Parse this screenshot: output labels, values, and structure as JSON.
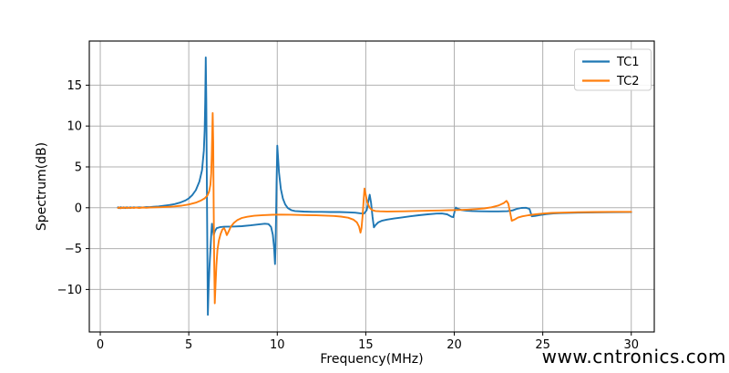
{
  "watermark": {
    "text": "www.cntronics.com",
    "color": "#b4e6b4"
  },
  "chart_data": {
    "type": "line",
    "title": "",
    "xlabel": "Frequency(MHz)",
    "ylabel": "Spectrum(dB)",
    "xlim": [
      -0.62,
      31.3
    ],
    "ylim": [
      -15.2,
      20.4
    ],
    "x_ticks": [
      0,
      5,
      10,
      15,
      20,
      25,
      30
    ],
    "y_ticks": [
      -10,
      -5,
      0,
      5,
      10,
      15
    ],
    "grid": true,
    "grid_color": "#b0b0b0",
    "axis_color": "#000000",
    "legend": {
      "position": "upper right",
      "entries": [
        "TC1",
        "TC2"
      ]
    },
    "series": [
      {
        "name": "TC1",
        "color": "#1f77b4",
        "points": [
          [
            1.0,
            0.05
          ],
          [
            1.08,
            -0.06
          ],
          [
            1.16,
            0.07
          ],
          [
            1.24,
            -0.03
          ],
          [
            1.32,
            0.06
          ],
          [
            1.4,
            -0.04
          ],
          [
            1.5,
            0.05
          ],
          [
            1.6,
            -0.02
          ],
          [
            1.7,
            0.06
          ],
          [
            1.8,
            0.0
          ],
          [
            1.9,
            0.06
          ],
          [
            2.0,
            0.02
          ],
          [
            2.2,
            0.06
          ],
          [
            2.4,
            0.04
          ],
          [
            2.6,
            0.08
          ],
          [
            2.8,
            0.08
          ],
          [
            3.0,
            0.12
          ],
          [
            3.3,
            0.17
          ],
          [
            3.6,
            0.24
          ],
          [
            3.9,
            0.33
          ],
          [
            4.2,
            0.45
          ],
          [
            4.5,
            0.62
          ],
          [
            4.8,
            0.88
          ],
          [
            5.0,
            1.15
          ],
          [
            5.2,
            1.55
          ],
          [
            5.4,
            2.15
          ],
          [
            5.6,
            3.2
          ],
          [
            5.75,
            4.6
          ],
          [
            5.85,
            7.0
          ],
          [
            5.9,
            9.5
          ],
          [
            5.93,
            13.0
          ],
          [
            5.96,
            18.4
          ],
          [
            5.99,
            13.0
          ],
          [
            6.02,
            3.0
          ],
          [
            6.05,
            -6.0
          ],
          [
            6.08,
            -13.1
          ],
          [
            6.12,
            -10.0
          ],
          [
            6.17,
            -7.2
          ],
          [
            6.22,
            -5.2
          ],
          [
            6.27,
            -3.3
          ],
          [
            6.31,
            -1.95
          ],
          [
            6.36,
            -2.7
          ],
          [
            6.41,
            -3.35
          ],
          [
            6.48,
            -2.85
          ],
          [
            6.58,
            -2.5
          ],
          [
            6.75,
            -2.38
          ],
          [
            7.0,
            -2.32
          ],
          [
            7.5,
            -2.3
          ],
          [
            8.0,
            -2.25
          ],
          [
            8.5,
            -2.15
          ],
          [
            9.0,
            -2.02
          ],
          [
            9.3,
            -1.95
          ],
          [
            9.5,
            -2.0
          ],
          [
            9.65,
            -2.35
          ],
          [
            9.75,
            -3.3
          ],
          [
            9.82,
            -4.9
          ],
          [
            9.87,
            -6.9
          ],
          [
            9.9,
            -5.0
          ],
          [
            9.93,
            -1.5
          ],
          [
            9.96,
            3.0
          ],
          [
            10.0,
            7.6
          ],
          [
            10.04,
            6.2
          ],
          [
            10.1,
            4.3
          ],
          [
            10.2,
            2.3
          ],
          [
            10.32,
            1.1
          ],
          [
            10.45,
            0.4
          ],
          [
            10.6,
            -0.05
          ],
          [
            10.8,
            -0.3
          ],
          [
            11.0,
            -0.4
          ],
          [
            11.5,
            -0.47
          ],
          [
            12.0,
            -0.5
          ],
          [
            12.5,
            -0.5
          ],
          [
            13.0,
            -0.52
          ],
          [
            13.5,
            -0.53
          ],
          [
            14.0,
            -0.56
          ],
          [
            14.4,
            -0.6
          ],
          [
            14.7,
            -0.68
          ],
          [
            14.9,
            -0.72
          ],
          [
            15.05,
            -0.3
          ],
          [
            15.15,
            0.8
          ],
          [
            15.22,
            1.6
          ],
          [
            15.3,
            0.6
          ],
          [
            15.38,
            -1.1
          ],
          [
            15.46,
            -2.4
          ],
          [
            15.56,
            -2.1
          ],
          [
            15.7,
            -1.8
          ],
          [
            15.9,
            -1.6
          ],
          [
            16.2,
            -1.45
          ],
          [
            16.6,
            -1.32
          ],
          [
            17.0,
            -1.2
          ],
          [
            17.5,
            -1.05
          ],
          [
            18.0,
            -0.92
          ],
          [
            18.5,
            -0.8
          ],
          [
            19.0,
            -0.72
          ],
          [
            19.3,
            -0.7
          ],
          [
            19.6,
            -0.8
          ],
          [
            19.85,
            -1.1
          ],
          [
            19.95,
            -1.15
          ],
          [
            20.02,
            -0.45
          ],
          [
            20.08,
            0.02
          ],
          [
            20.2,
            -0.12
          ],
          [
            20.4,
            -0.28
          ],
          [
            20.7,
            -0.36
          ],
          [
            21.0,
            -0.4
          ],
          [
            21.5,
            -0.43
          ],
          [
            22.0,
            -0.45
          ],
          [
            22.5,
            -0.45
          ],
          [
            23.0,
            -0.42
          ],
          [
            23.3,
            -0.32
          ],
          [
            23.55,
            -0.12
          ],
          [
            23.8,
            -0.02
          ],
          [
            24.05,
            0.0
          ],
          [
            24.25,
            -0.15
          ],
          [
            24.38,
            -1.05
          ],
          [
            24.55,
            -1.0
          ],
          [
            24.8,
            -0.9
          ],
          [
            25.2,
            -0.78
          ],
          [
            25.6,
            -0.7
          ],
          [
            26.0,
            -0.66
          ],
          [
            26.5,
            -0.62
          ],
          [
            27.0,
            -0.6
          ],
          [
            28.0,
            -0.57
          ],
          [
            29.0,
            -0.55
          ],
          [
            30.0,
            -0.54
          ]
        ]
      },
      {
        "name": "TC2",
        "color": "#ff7f0e",
        "points": [
          [
            1.0,
            -0.03
          ],
          [
            1.08,
            0.05
          ],
          [
            1.16,
            -0.07
          ],
          [
            1.24,
            0.03
          ],
          [
            1.32,
            -0.05
          ],
          [
            1.4,
            0.04
          ],
          [
            1.5,
            -0.05
          ],
          [
            1.6,
            0.03
          ],
          [
            1.7,
            -0.04
          ],
          [
            1.8,
            0.03
          ],
          [
            1.9,
            -0.03
          ],
          [
            2.0,
            0.02
          ],
          [
            2.2,
            -0.02
          ],
          [
            2.4,
            0.03
          ],
          [
            2.6,
            0.0
          ],
          [
            2.8,
            0.03
          ],
          [
            3.0,
            0.04
          ],
          [
            3.4,
            0.07
          ],
          [
            3.8,
            0.11
          ],
          [
            4.2,
            0.17
          ],
          [
            4.6,
            0.26
          ],
          [
            5.0,
            0.4
          ],
          [
            5.4,
            0.62
          ],
          [
            5.7,
            0.9
          ],
          [
            5.9,
            1.15
          ],
          [
            6.05,
            1.5
          ],
          [
            6.15,
            2.0
          ],
          [
            6.22,
            2.8
          ],
          [
            6.27,
            4.2
          ],
          [
            6.3,
            6.5
          ],
          [
            6.33,
            9.5
          ],
          [
            6.35,
            11.6
          ],
          [
            6.38,
            8.0
          ],
          [
            6.41,
            0.0
          ],
          [
            6.44,
            -7.0
          ],
          [
            6.47,
            -11.7
          ],
          [
            6.51,
            -9.5
          ],
          [
            6.56,
            -7.0
          ],
          [
            6.62,
            -5.2
          ],
          [
            6.7,
            -4.0
          ],
          [
            6.8,
            -3.2
          ],
          [
            6.9,
            -2.65
          ],
          [
            7.0,
            -2.5
          ],
          [
            7.08,
            -2.9
          ],
          [
            7.15,
            -3.35
          ],
          [
            7.25,
            -2.9
          ],
          [
            7.38,
            -2.3
          ],
          [
            7.55,
            -1.85
          ],
          [
            7.75,
            -1.5
          ],
          [
            8.0,
            -1.25
          ],
          [
            8.3,
            -1.1
          ],
          [
            8.7,
            -0.98
          ],
          [
            9.2,
            -0.9
          ],
          [
            9.7,
            -0.86
          ],
          [
            10.2,
            -0.84
          ],
          [
            10.7,
            -0.85
          ],
          [
            11.2,
            -0.88
          ],
          [
            11.7,
            -0.9
          ],
          [
            12.2,
            -0.93
          ],
          [
            12.7,
            -0.96
          ],
          [
            13.2,
            -1.0
          ],
          [
            13.6,
            -1.08
          ],
          [
            14.0,
            -1.22
          ],
          [
            14.3,
            -1.45
          ],
          [
            14.5,
            -1.8
          ],
          [
            14.62,
            -2.3
          ],
          [
            14.7,
            -3.05
          ],
          [
            14.76,
            -2.5
          ],
          [
            14.82,
            -1.0
          ],
          [
            14.88,
            1.0
          ],
          [
            14.93,
            2.35
          ],
          [
            14.99,
            1.7
          ],
          [
            15.08,
            0.7
          ],
          [
            15.2,
            0.05
          ],
          [
            15.35,
            -0.28
          ],
          [
            15.55,
            -0.4
          ],
          [
            15.8,
            -0.44
          ],
          [
            16.2,
            -0.46
          ],
          [
            16.7,
            -0.45
          ],
          [
            17.2,
            -0.43
          ],
          [
            17.7,
            -0.4
          ],
          [
            18.2,
            -0.38
          ],
          [
            18.7,
            -0.35
          ],
          [
            19.2,
            -0.33
          ],
          [
            19.7,
            -0.3
          ],
          [
            20.2,
            -0.28
          ],
          [
            20.7,
            -0.24
          ],
          [
            21.2,
            -0.17
          ],
          [
            21.7,
            -0.08
          ],
          [
            22.1,
            0.05
          ],
          [
            22.5,
            0.28
          ],
          [
            22.8,
            0.58
          ],
          [
            22.95,
            0.85
          ],
          [
            23.05,
            0.5
          ],
          [
            23.15,
            -0.5
          ],
          [
            23.25,
            -1.6
          ],
          [
            23.4,
            -1.45
          ],
          [
            23.6,
            -1.2
          ],
          [
            23.85,
            -1.05
          ],
          [
            24.2,
            -0.92
          ],
          [
            24.6,
            -0.8
          ],
          [
            25.0,
            -0.72
          ],
          [
            25.5,
            -0.64
          ],
          [
            26.0,
            -0.6
          ],
          [
            26.5,
            -0.57
          ],
          [
            27.0,
            -0.55
          ],
          [
            28.0,
            -0.52
          ],
          [
            29.0,
            -0.5
          ],
          [
            30.0,
            -0.5
          ]
        ]
      }
    ]
  }
}
